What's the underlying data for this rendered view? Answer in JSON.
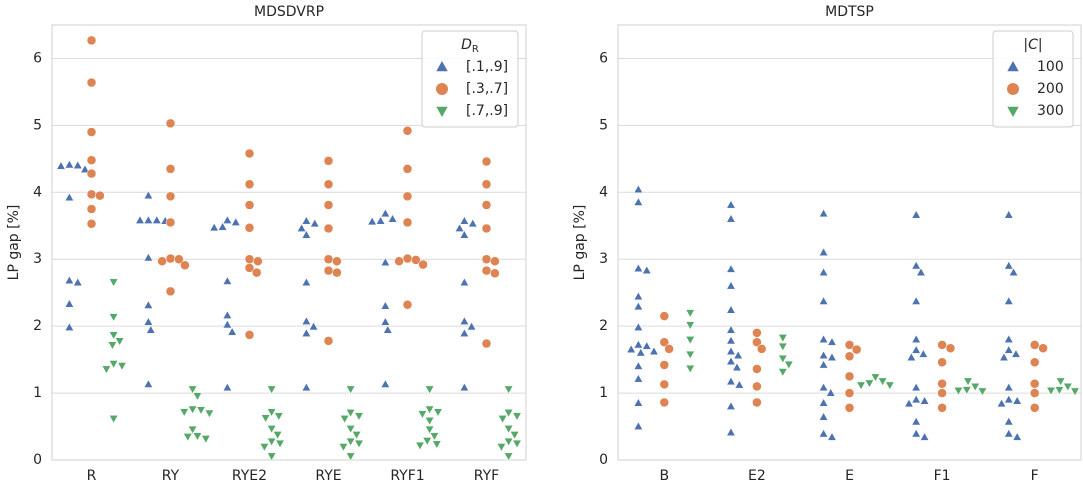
{
  "chart_data": [
    {
      "type": "swarm",
      "title": "MDSDVRP",
      "ylabel": "LP gap [%]",
      "categories": [
        "R",
        "RY",
        "RYE2",
        "RYE",
        "RYF1",
        "RYF"
      ],
      "ylim": [
        0,
        6.5
      ],
      "yticks": [
        0,
        1,
        2,
        3,
        4,
        5,
        6
      ],
      "grid": true,
      "legend": "upper right",
      "legend_title": "D",
      "legend_title_subscript": "R",
      "series": [
        {
          "name": "[.1,.9]",
          "color": "#4c72b0",
          "marker": "triangle-up",
          "values": [
            [
              4.41,
              4.4,
              4.34,
              4.39,
              3.92,
              2.68,
              2.65,
              2.33,
              1.98
            ],
            [
              3.95,
              3.58,
              3.57,
              3.58,
              3.58,
              3.02,
              2.31,
              2.06,
              1.94,
              1.13
            ],
            [
              3.58,
              3.55,
              3.48,
              3.47,
              2.67,
              2.16,
              2.02,
              1.91,
              1.08
            ],
            [
              3.57,
              3.53,
              3.46,
              3.36,
              2.65,
              2.07,
              1.99,
              1.89,
              1.08
            ],
            [
              3.68,
              3.6,
              3.56,
              3.57,
              2.95,
              2.3,
              2.06,
              1.94,
              1.13
            ],
            [
              3.57,
              3.53,
              3.46,
              3.36,
              2.65,
              2.07,
              1.99,
              1.89,
              1.08
            ]
          ]
        },
        {
          "name": "[.3,.7]",
          "color": "#dd8452",
          "marker": "circle",
          "values": [
            [
              6.27,
              5.64,
              4.9,
              4.48,
              4.28,
              3.97,
              3.95,
              3.75,
              3.53
            ],
            [
              5.03,
              4.35,
              3.94,
              3.55,
              3.01,
              3.0,
              2.97,
              2.91,
              2.52
            ],
            [
              4.58,
              4.12,
              3.81,
              3.47,
              3.0,
              2.97,
              2.87,
              2.8,
              1.87
            ],
            [
              4.47,
              4.12,
              3.81,
              3.46,
              3.0,
              2.97,
              2.83,
              2.8,
              1.78
            ],
            [
              4.92,
              4.35,
              3.94,
              3.55,
              3.01,
              2.99,
              2.97,
              2.92,
              2.32
            ],
            [
              4.46,
              4.12,
              3.81,
              3.46,
              3.0,
              2.97,
              2.83,
              2.79,
              1.74
            ]
          ]
        },
        {
          "name": "[.7,.9]",
          "color": "#55a868",
          "marker": "triangle-down",
          "values": [
            [
              2.66,
              2.14,
              1.87,
              1.78,
              1.72,
              1.44,
              1.41,
              1.36,
              0.62
            ],
            [
              1.06,
              0.96,
              0.75,
              0.72,
              0.7,
              0.76,
              0.46,
              0.35,
              0.32,
              0.36
            ],
            [
              1.06,
              0.72,
              0.66,
              0.63,
              0.47,
              0.38,
              0.28,
              0.25,
              0.2,
              0.06
            ],
            [
              1.06,
              0.71,
              0.66,
              0.62,
              0.47,
              0.38,
              0.28,
              0.25,
              0.2,
              0.06
            ],
            [
              1.06,
              0.76,
              0.72,
              0.69,
              0.59,
              0.46,
              0.36,
              0.29,
              0.22,
              0.24
            ],
            [
              1.06,
              0.71,
              0.66,
              0.62,
              0.47,
              0.38,
              0.28,
              0.25,
              0.2,
              0.06
            ]
          ]
        }
      ]
    },
    {
      "type": "swarm",
      "title": "MDTSP",
      "ylabel": "LP gap [%]",
      "categories": [
        "B",
        "E2",
        "E",
        "F1",
        "F"
      ],
      "ylim": [
        0,
        6.5
      ],
      "yticks": [
        0,
        1,
        2,
        3,
        4,
        5,
        6
      ],
      "grid": true,
      "legend": "upper right",
      "legend_title": "|C|",
      "series": [
        {
          "name": "100",
          "color": "#4c72b0",
          "marker": "triangle-up",
          "values": [
            [
              4.04,
              3.85,
              2.86,
              2.83,
              2.44,
              2.29,
              1.98,
              1.72,
              1.7,
              1.65,
              1.62,
              1.6,
              1.4,
              1.21,
              0.85,
              0.5
            ],
            [
              3.81,
              3.6,
              2.85,
              2.6,
              2.24,
              1.94,
              1.78,
              1.62,
              1.56,
              1.47,
              1.38,
              1.17,
              1.12,
              0.8,
              0.41
            ],
            [
              3.68,
              3.1,
              2.8,
              2.37,
              1.8,
              1.76,
              1.56,
              1.53,
              1.42,
              1.08,
              1.0,
              0.85,
              0.64,
              0.39,
              0.34
            ],
            [
              3.66,
              2.9,
              2.8,
              2.37,
              1.8,
              1.64,
              1.58,
              1.53,
              1.08,
              0.9,
              0.88,
              0.84,
              0.57,
              0.39,
              0.34
            ],
            [
              3.66,
              2.9,
              2.8,
              2.37,
              1.8,
              1.64,
              1.58,
              1.53,
              1.08,
              0.9,
              0.88,
              0.84,
              0.57,
              0.39,
              0.34
            ]
          ]
        },
        {
          "name": "200",
          "color": "#dd8452",
          "marker": "circle",
          "values": [
            [
              2.15,
              1.76,
              1.66,
              1.42,
              1.13,
              0.86
            ],
            [
              1.9,
              1.76,
              1.66,
              1.36,
              1.1,
              0.86
            ],
            [
              1.72,
              1.65,
              1.55,
              1.25,
              1.0,
              0.78
            ],
            [
              1.72,
              1.67,
              1.46,
              1.14,
              1.0,
              0.78
            ],
            [
              1.72,
              1.67,
              1.46,
              1.14,
              1.0,
              0.78
            ]
          ]
        },
        {
          "name": "300",
          "color": "#55a868",
          "marker": "triangle-down",
          "values": [
            [
              2.2,
              2.02,
              1.8,
              1.58,
              1.37
            ],
            [
              1.83,
              1.7,
              1.52,
              1.43,
              1.32
            ],
            [
              1.24,
              1.18,
              1.15,
              1.12,
              1.12
            ],
            [
              1.18,
              1.1,
              1.05,
              1.04,
              1.03
            ],
            [
              1.18,
              1.1,
              1.05,
              1.04,
              1.03
            ]
          ]
        }
      ]
    }
  ]
}
